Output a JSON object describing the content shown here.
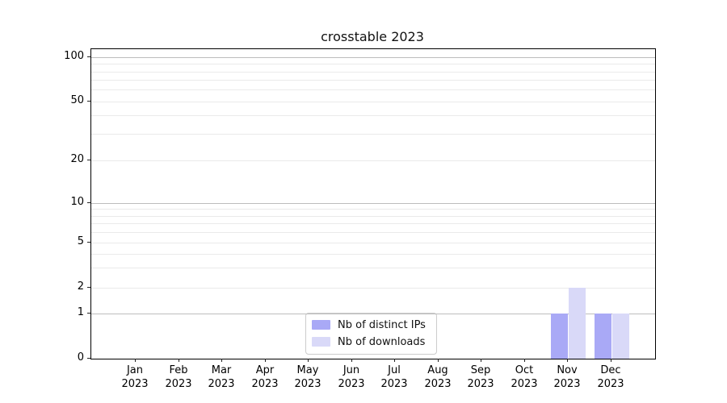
{
  "chart_data": {
    "type": "bar",
    "title": "crosstable 2023",
    "categories": [
      "Jan 2023",
      "Feb 2023",
      "Mar 2023",
      "Apr 2023",
      "May 2023",
      "Jun 2023",
      "Jul 2023",
      "Aug 2023",
      "Sep 2023",
      "Oct 2023",
      "Nov 2023",
      "Dec 2023"
    ],
    "series": [
      {
        "name": "Nb of distinct IPs",
        "color": "#a9a9f6",
        "values": [
          0,
          0,
          0,
          0,
          0,
          0,
          0,
          0,
          0,
          0,
          1,
          1
        ]
      },
      {
        "name": "Nb of downloads",
        "color": "#d9d9f8",
        "values": [
          0,
          0,
          0,
          0,
          0,
          0,
          0,
          0,
          0,
          0,
          2,
          1
        ]
      }
    ],
    "yscale": "log",
    "y_ticks": [
      "0",
      "1",
      "2",
      "5",
      "10",
      "20",
      "50",
      "100"
    ],
    "grid": "on",
    "legend_position": "lower center",
    "axis_color": "#000000",
    "grid_minor_color": "#eaeaea",
    "grid_major_color": "#bdbdbd"
  }
}
